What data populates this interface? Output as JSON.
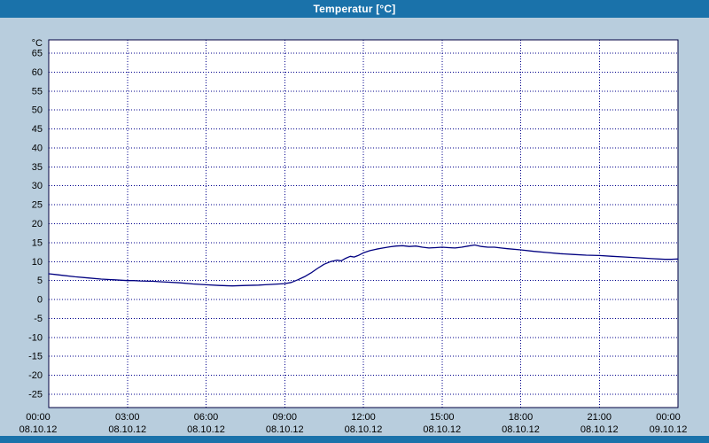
{
  "window": {
    "title": "Temperatur [°C]"
  },
  "colors": {
    "titlebar": "#1a72aa",
    "titlebar_text": "#ffffff",
    "background": "#b8cddd",
    "plot_background": "#ffffff",
    "plot_border": "#000040",
    "grid": "#00008b",
    "line": "#000080",
    "label_text": "#000000"
  },
  "chart_data": {
    "type": "line",
    "title": "Temperatur [°C]",
    "y_unit_label": "°C",
    "xlabel": "",
    "ylabel": "Temperatur",
    "ylim": [
      -28.5,
      68.5
    ],
    "xlim_hours": [
      0,
      24
    ],
    "grid": "dotted",
    "legend_position": "none",
    "y_ticks": [
      65,
      60,
      55,
      50,
      45,
      40,
      35,
      30,
      25,
      20,
      15,
      10,
      5,
      0,
      -5,
      -10,
      -15,
      -20,
      -25
    ],
    "x_ticks": [
      {
        "hour": 0,
        "time": "00:00",
        "date": "08.10.12"
      },
      {
        "hour": 3,
        "time": "03:00",
        "date": "08.10.12"
      },
      {
        "hour": 6,
        "time": "06:00",
        "date": "08.10.12"
      },
      {
        "hour": 9,
        "time": "09:00",
        "date": "08.10.12"
      },
      {
        "hour": 12,
        "time": "12:00",
        "date": "08.10.12"
      },
      {
        "hour": 15,
        "time": "15:00",
        "date": "08.10.12"
      },
      {
        "hour": 18,
        "time": "18:00",
        "date": "08.10.12"
      },
      {
        "hour": 21,
        "time": "21:00",
        "date": "08.10.12"
      },
      {
        "hour": 24,
        "time": "00:00",
        "date": "09.10.12"
      }
    ],
    "series": [
      {
        "name": "Temperatur",
        "color": "#000080",
        "points_hour_degC": [
          [
            0,
            6.8
          ],
          [
            0.25,
            6.6
          ],
          [
            0.5,
            6.4
          ],
          [
            1,
            6.0
          ],
          [
            1.5,
            5.7
          ],
          [
            2,
            5.4
          ],
          [
            2.5,
            5.2
          ],
          [
            3,
            5.0
          ],
          [
            3.25,
            5.0
          ],
          [
            3.5,
            4.9
          ],
          [
            4,
            4.8
          ],
          [
            4.25,
            4.7
          ],
          [
            4.5,
            4.6
          ],
          [
            5,
            4.4
          ],
          [
            5.5,
            4.1
          ],
          [
            6,
            3.9
          ],
          [
            6.5,
            3.7
          ],
          [
            7,
            3.6
          ],
          [
            7.5,
            3.7
          ],
          [
            8,
            3.8
          ],
          [
            8.25,
            3.9
          ],
          [
            8.5,
            4.0
          ],
          [
            9,
            4.2
          ],
          [
            9.25,
            4.5
          ],
          [
            9.5,
            5.2
          ],
          [
            9.75,
            6.0
          ],
          [
            10,
            7.0
          ],
          [
            10.25,
            8.2
          ],
          [
            10.5,
            9.3
          ],
          [
            10.75,
            10.0
          ],
          [
            11,
            10.4
          ],
          [
            11.15,
            10.2
          ],
          [
            11.3,
            10.8
          ],
          [
            11.5,
            11.4
          ],
          [
            11.65,
            11.2
          ],
          [
            11.8,
            11.6
          ],
          [
            12,
            12.3
          ],
          [
            12.25,
            12.9
          ],
          [
            12.5,
            13.3
          ],
          [
            12.75,
            13.6
          ],
          [
            13,
            13.9
          ],
          [
            13.25,
            14.1
          ],
          [
            13.5,
            14.2
          ],
          [
            13.75,
            14.0
          ],
          [
            14,
            14.1
          ],
          [
            14.25,
            13.8
          ],
          [
            14.5,
            13.6
          ],
          [
            14.75,
            13.7
          ],
          [
            15,
            13.8
          ],
          [
            15.25,
            13.7
          ],
          [
            15.5,
            13.6
          ],
          [
            15.75,
            13.8
          ],
          [
            16,
            14.1
          ],
          [
            16.25,
            14.4
          ],
          [
            16.5,
            14.0
          ],
          [
            16.75,
            13.8
          ],
          [
            17,
            13.8
          ],
          [
            17.25,
            13.6
          ],
          [
            17.5,
            13.4
          ],
          [
            18,
            13.1
          ],
          [
            18.5,
            12.7
          ],
          [
            19,
            12.4
          ],
          [
            19.5,
            12.1
          ],
          [
            20,
            11.9
          ],
          [
            20.5,
            11.7
          ],
          [
            21,
            11.6
          ],
          [
            21.5,
            11.4
          ],
          [
            22,
            11.2
          ],
          [
            22.5,
            11.0
          ],
          [
            23,
            10.8
          ],
          [
            23.5,
            10.6
          ],
          [
            23.75,
            10.6
          ],
          [
            24,
            10.7
          ]
        ]
      }
    ]
  }
}
